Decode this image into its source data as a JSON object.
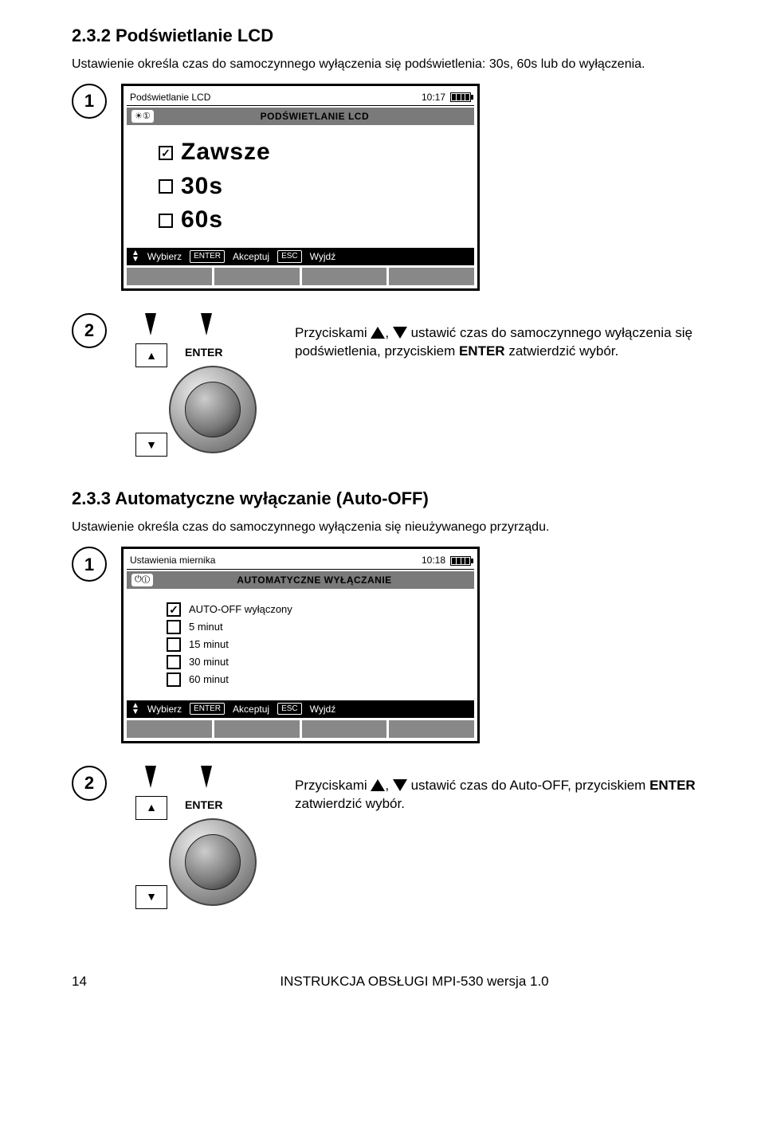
{
  "sec232": {
    "heading": "2.3.2  Podświetlanie LCD",
    "intro": "Ustawienie określa czas do samoczynnego wyłączenia się podświetlenia: 30s, 60s lub do wyłączenia.",
    "lcd": {
      "top_title": "Podświetlanie LCD",
      "top_time": "10:17",
      "sub_icon": "☀①",
      "sub_title": "PODŚWIETLANIE LCD",
      "options": [
        {
          "label": "Zawsze",
          "checked": true
        },
        {
          "label": "30s",
          "checked": false
        },
        {
          "label": "60s",
          "checked": false
        }
      ],
      "foot_select": "Wybierz",
      "foot_enter": "Akceptuj",
      "foot_esc": "Wyjdź",
      "key_enter": "ENTER",
      "key_esc": "ESC"
    },
    "step2_enter_label": "ENTER",
    "step2_text_pre": "Przyciskami ",
    "step2_text_mid": ", ",
    "step2_text_post": " ustawić czas do samoczynnego wyłączenia się podświetlenia, przyciskiem ",
    "step2_text_key": "ENTER",
    "step2_text_end": " zatwierdzić wybór."
  },
  "sec233": {
    "heading": "2.3.3  Automatyczne wyłączanie (Auto-OFF)",
    "intro": "Ustawienie określa czas do samoczynnego wyłączenia się nieużywanego przyrządu.",
    "lcd": {
      "top_title": "Ustawienia miernika",
      "top_time": "10:18",
      "sub_icon": "⏻①",
      "sub_title": "AUTOMATYCZNE WYŁĄCZANIE",
      "options": [
        {
          "label": "AUTO-OFF wyłączony",
          "checked": true
        },
        {
          "label": "5 minut",
          "checked": false
        },
        {
          "label": "15 minut",
          "checked": false
        },
        {
          "label": "30 minut",
          "checked": false
        },
        {
          "label": "60 minut",
          "checked": false
        }
      ],
      "foot_select": "Wybierz",
      "foot_enter": "Akceptuj",
      "foot_esc": "Wyjdź",
      "key_enter": "ENTER",
      "key_esc": "ESC"
    },
    "step2_enter_label": "ENTER",
    "step2_text_pre": "Przyciskami ",
    "step2_text_mid": ", ",
    "step2_text_post": " ustawić czas do Auto-OFF, przyciskiem ",
    "step2_text_key": "ENTER",
    "step2_text_end": " zatwierdzić wybór."
  },
  "footer": {
    "page": "14",
    "title": "INSTRUKCJA OBSŁUGI MPI-530   wersja 1.0"
  },
  "step_numbers": {
    "one": "1",
    "two": "2"
  },
  "arrow_glyphs": {
    "up": "▲",
    "down": "▼"
  }
}
